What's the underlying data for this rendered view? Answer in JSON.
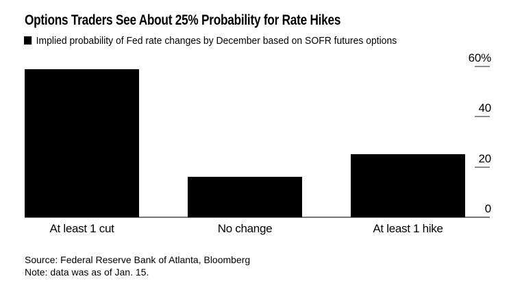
{
  "title": "Options Traders See About 25% Probability for Rate Hikes",
  "legend": {
    "label": "Implied probability of Fed rate changes by December based on SOFR futures options",
    "swatch_color": "#000000"
  },
  "source_line": "Source: Federal Reserve Bank of Atlanta, Bloomberg",
  "note_line": "Note: data was as of Jan. 15.",
  "colors": {
    "background": "#ffffff",
    "bar": "#000000",
    "axis_line": "#757575",
    "tick_dash": "#8c8c8c",
    "text": "#000000"
  },
  "chart_data": {
    "type": "bar",
    "title": "Options Traders See About 25% Probability for Rate Hikes",
    "subtitle": "Implied probability of Fed rate changes by December based on SOFR futures options",
    "categories": [
      "At least 1 cut",
      "No change",
      "At least 1 hike"
    ],
    "values": [
      59,
      16,
      25
    ],
    "unit": "%",
    "xlabel": "",
    "ylabel": "",
    "ylim": [
      0,
      60
    ],
    "yticks": [
      0,
      20,
      40,
      60
    ],
    "ytick_labels": [
      "0",
      "20",
      "40",
      "60%"
    ],
    "value_axis_side": "right",
    "grid": false,
    "legend_position": "top-left",
    "bar_color": "#000000"
  }
}
